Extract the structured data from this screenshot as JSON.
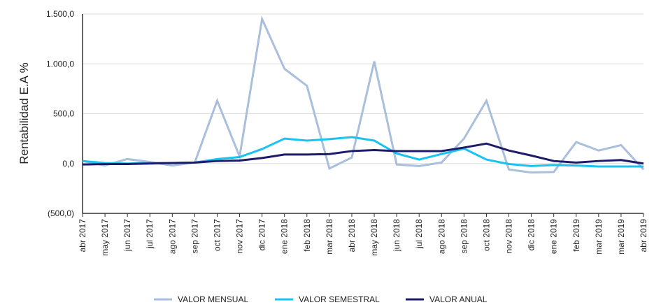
{
  "chart_data": {
    "type": "line",
    "ylabel": "Rentabilidad E.A %",
    "categories": [
      "abr 2017",
      "may 2017",
      "jun 2017",
      "jul 2017",
      "ago 2017",
      "sep 2017",
      "oct 2017",
      "nov 2017",
      "dic 2017",
      "ene 2018",
      "feb 2018",
      "mar 2018",
      "abr 2018",
      "may 2018",
      "jun 2018",
      "jul 2018",
      "ago 2018",
      "sep 2018",
      "oct 2018",
      "nov 2018",
      "dic 2018",
      "ene 2019",
      "feb 2019",
      "mar 2019",
      "mar 2019",
      "abr 2019"
    ],
    "series": [
      {
        "name": "VALOR MENSUAL",
        "color": "#a9bfdc",
        "values": [
          25,
          -20,
          45,
          15,
          -20,
          10,
          630,
          70,
          1450,
          950,
          780,
          -50,
          60,
          1025,
          -10,
          -25,
          10,
          250,
          630,
          -60,
          -90,
          -85,
          215,
          130,
          185,
          -60
        ]
      },
      {
        "name": "VALOR SEMESTRAL",
        "color": "#19c3f0",
        "values": [
          25,
          5,
          0,
          5,
          5,
          10,
          45,
          65,
          145,
          250,
          230,
          245,
          265,
          230,
          100,
          40,
          95,
          150,
          40,
          -5,
          -25,
          -15,
          -20,
          -30,
          -30,
          -30
        ]
      },
      {
        "name": "VALOR ANUAL",
        "color": "#1e1b6b",
        "values": [
          -10,
          -5,
          -5,
          0,
          5,
          10,
          25,
          30,
          55,
          90,
          90,
          95,
          125,
          135,
          125,
          125,
          125,
          160,
          200,
          130,
          80,
          25,
          10,
          25,
          35,
          0
        ]
      }
    ],
    "ylim": [
      -500,
      1500
    ],
    "yticks": [
      {
        "value": 1500,
        "label": "1.500,0"
      },
      {
        "value": 1000,
        "label": "1.000,0"
      },
      {
        "value": 500,
        "label": "500,0"
      },
      {
        "value": 0,
        "label": "0,0"
      },
      {
        "value": -500,
        "label": "(500,0)"
      }
    ],
    "grid": true,
    "legend": "bottom"
  }
}
